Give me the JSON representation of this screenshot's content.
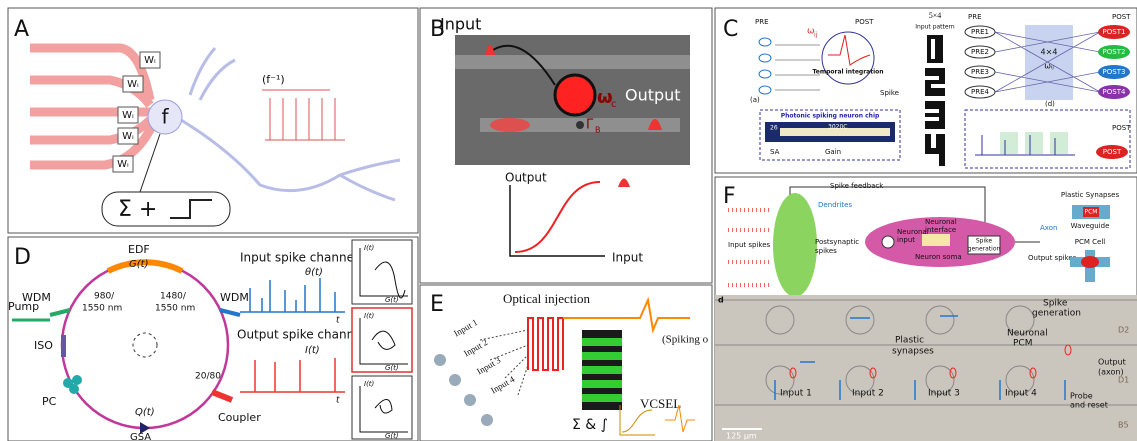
{
  "panel_a": {
    "label": "A",
    "neuron": "f",
    "weights": [
      "Wᵢ",
      "Wᵢ",
      "Wᵢ",
      "Wᵢ",
      "Wᵢ"
    ],
    "period": "(f⁻¹)",
    "activation": "Σ +"
  },
  "panel_b": {
    "label": "B",
    "input": "Input",
    "omega": "ω",
    "omega_sub": "c",
    "output": "Output",
    "gamma": "Γ",
    "gamma_sub": "B",
    "plot_y": "Output",
    "plot_x": "Input"
  },
  "panel_c": {
    "label": "C",
    "pre": "PRE",
    "post": "POST",
    "omega": "ω",
    "omega_sub": "ij",
    "integration": "Temporal integration",
    "spike": "Spike",
    "sub_a": "(a)",
    "pattern_size": "5×4",
    "pattern": "Input pattern",
    "chip": "Photonic spiking neuron chip",
    "chip_id": "26",
    "chip_name": "3020C",
    "sa": "SA",
    "gain": "Gain",
    "pre2": "PRE",
    "post2": "POST",
    "pre_nodes": [
      "PRE1",
      "PRE2",
      "PRE3",
      "PRE4"
    ],
    "matrix": "4×4",
    "matrix_w": "ωᵢⱼ",
    "post_nodes": [
      "POST1",
      "POST2",
      "POST3",
      "POST4"
    ],
    "sub_d": "(d)",
    "post3": "POST",
    "post4": "POST"
  },
  "panel_d": {
    "label": "D",
    "edf": "EDF",
    "gain": "G(t)",
    "wdm_left": "WDM",
    "wdm_right": "WDM",
    "wl_left": [
      "980/",
      "1550 nm"
    ],
    "wl_right": [
      "1480/",
      "1550 nm"
    ],
    "pump": "Pump",
    "iso": "ISO",
    "pc": "PC",
    "ratio": "20/80",
    "q": "Q(t)",
    "gsa": "GSA",
    "coupler": "Coupler",
    "input_channel": "Input spike channel",
    "theta": "θ(t)",
    "t1": "t",
    "output_channel": "Output spike channel",
    "current": "I(t)",
    "t2": "t",
    "phase": [
      {
        "y": "I(t)",
        "x": "G(t)"
      },
      {
        "y": "I(t)",
        "x": "G(t)"
      },
      {
        "y": "I(t)",
        "x": "G(t)"
      }
    ]
  },
  "panel_e": {
    "label": "E",
    "injection": "Optical injection",
    "inputs": [
      "Input 1",
      "Input 2",
      "Input 3",
      "Input 4"
    ],
    "spiking": "(Spiking o",
    "vcsel": "VCSEL",
    "sum": "Σ & ∫"
  },
  "panel_f": {
    "label": "F",
    "feedback": "Spike feedback",
    "dendrites": "Dendrites",
    "input_spikes": "Input spikes",
    "postsynaptic": [
      "Postsynaptic",
      "spikes"
    ],
    "neuronal_input": [
      "Neuronal",
      "input"
    ],
    "interface": [
      "Neuronal",
      "interface"
    ],
    "soma": "Neuron soma",
    "generation": [
      "Spike",
      "generation"
    ],
    "axon": "Axon",
    "output_spikes": "Output spikes",
    "plastic": "Plastic Synapses",
    "pcm": "PCM",
    "waveguide": "Waveguide",
    "pcm_cell": "PCM Cell",
    "sub_d": "d",
    "photo_generation": [
      "Spike",
      "generation"
    ],
    "photo_synapses": [
      "Plastic",
      "synapses"
    ],
    "photo_pcm": [
      "Neuronal",
      "PCM"
    ],
    "photo_output": [
      "Output",
      "(axon)"
    ],
    "photo_inputs": [
      "Input 1",
      "Input 2",
      "Input 3",
      "Input 4"
    ],
    "probe": [
      "Probe",
      "and reset"
    ],
    "rows": [
      "D2",
      "D1",
      "B5"
    ],
    "scale": "125 µm"
  }
}
